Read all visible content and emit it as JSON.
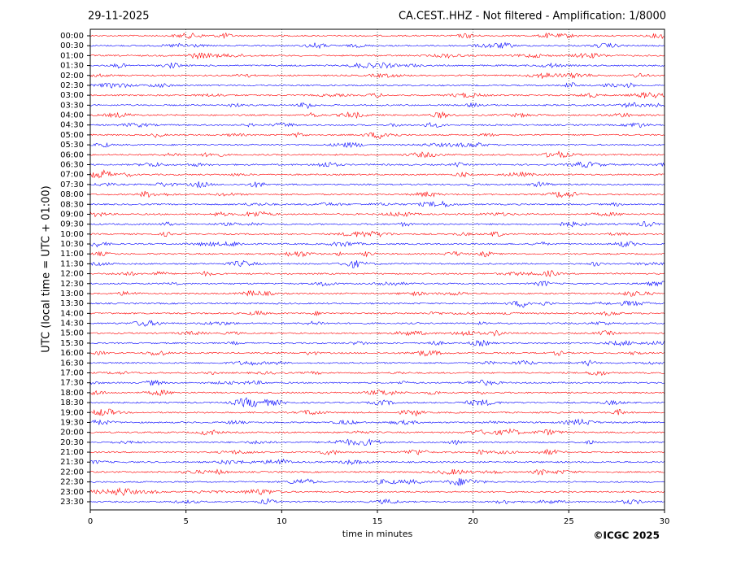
{
  "chart_data": {
    "type": "helicorder",
    "date": "29-11-2025",
    "title": "CA.CEST..HHZ - Not filtered - Amplification: 1/8000",
    "ylabel": "UTC (local time = UTC + 01:00)",
    "xlabel": "time in minutes",
    "credit": "©ICGC 2025",
    "categories": [
      "00:00",
      "00:30",
      "01:00",
      "01:30",
      "02:00",
      "02:30",
      "03:00",
      "03:30",
      "04:00",
      "04:30",
      "05:00",
      "05:30",
      "06:00",
      "06:30",
      "07:00",
      "07:30",
      "08:00",
      "08:30",
      "09:00",
      "09:30",
      "10:00",
      "10:30",
      "11:00",
      "11:30",
      "12:00",
      "12:30",
      "13:00",
      "13:30",
      "14:00",
      "14:30",
      "15:00",
      "15:30",
      "16:00",
      "16:30",
      "17:00",
      "17:30",
      "18:00",
      "18:30",
      "19:00",
      "19:30",
      "20:00",
      "20:30",
      "21:00",
      "21:30",
      "22:00",
      "22:30",
      "23:00",
      "23:30"
    ],
    "colors": [
      "#ff0000",
      "#0000ff"
    ],
    "xlim": [
      0,
      30
    ],
    "xticks": [
      0,
      5,
      10,
      15,
      20,
      25,
      30
    ],
    "grid": true
  }
}
